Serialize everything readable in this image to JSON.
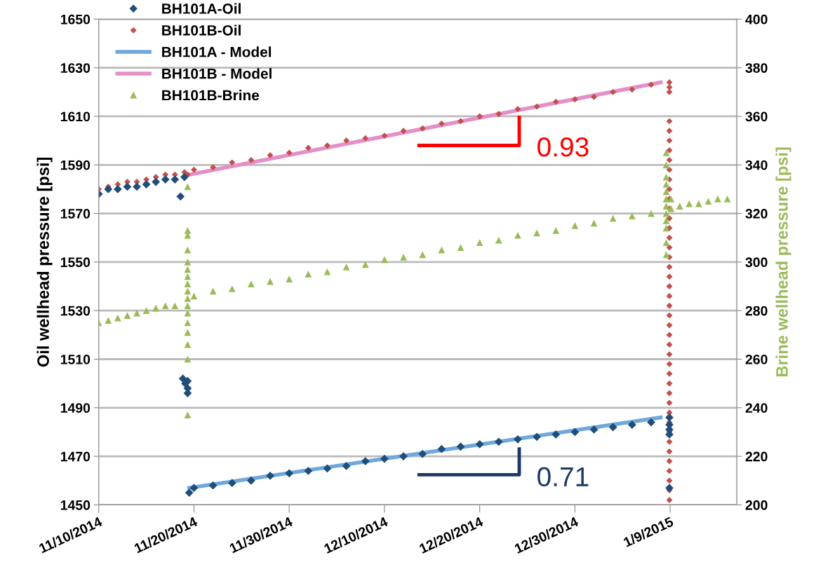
{
  "chart_data": {
    "type": "scatter",
    "ylabel": "Oil wellhead pressure [psi]",
    "y2label": "Brine wellhead pressure [psi]",
    "xlim": [
      "2014-11-10",
      "2015-01-16"
    ],
    "xticks": [
      {
        "value": "2014-11-10",
        "label": "11/10/2014"
      },
      {
        "value": "2014-11-20",
        "label": "11/20/2014"
      },
      {
        "value": "2014-11-30",
        "label": "11/30/2014"
      },
      {
        "value": "2014-12-10",
        "label": "12/10/2014"
      },
      {
        "value": "2014-12-20",
        "label": "12/20/2014"
      },
      {
        "value": "2014-12-30",
        "label": "12/30/2014"
      },
      {
        "value": "2015-01-09",
        "label": "1/9/2015"
      }
    ],
    "ylim": [
      1450,
      1650
    ],
    "yticks": [
      1450,
      1470,
      1490,
      1510,
      1530,
      1550,
      1570,
      1590,
      1610,
      1630,
      1650
    ],
    "y2lim": [
      200,
      400
    ],
    "y2ticks": [
      200,
      220,
      240,
      260,
      280,
      300,
      320,
      340,
      360,
      380,
      400
    ],
    "grid": "y",
    "legend": "top left",
    "series": [
      {
        "name": "BH101A-Oil",
        "marker": "diamond",
        "color": "#1f4e79",
        "x": [
          "2014-11-10",
          "2014-11-11",
          "2014-11-12",
          "2014-11-13",
          "2014-11-14",
          "2014-11-15",
          "2014-11-16",
          "2014-11-17",
          "2014-11-18",
          "2014-11-18T14:00",
          "2014-11-19",
          "2014-11-18T20:00",
          "2014-11-19T02:00",
          "2014-11-19T08:00",
          "2014-11-19T08:00",
          "2014-11-19T08:00",
          "2014-11-19T12:00",
          "2014-11-20",
          "2014-11-22",
          "2014-11-24",
          "2014-11-26",
          "2014-11-28",
          "2014-11-30",
          "2014-12-02",
          "2014-12-04",
          "2014-12-06",
          "2014-12-08",
          "2014-12-10",
          "2014-12-12",
          "2014-12-14",
          "2014-12-16",
          "2014-12-18",
          "2014-12-20",
          "2014-12-22",
          "2014-12-24",
          "2014-12-26",
          "2014-12-28",
          "2014-12-30",
          "2015-01-01",
          "2015-01-03",
          "2015-01-05",
          "2015-01-07",
          "2015-01-08T22:00",
          "2015-01-08T22:00",
          "2015-01-08T22:00",
          "2015-01-08T22:00",
          "2015-01-08T22:00"
        ],
        "values": [
          1578,
          1580,
          1580,
          1581,
          1581,
          1582,
          1583,
          1584,
          1584,
          1577,
          1585,
          1502,
          1500,
          1501,
          1498,
          1496,
          1455,
          1457,
          1458,
          1459,
          1460,
          1462,
          1463,
          1464,
          1465,
          1466,
          1468,
          1469,
          1470,
          1471,
          1473,
          1474,
          1475,
          1476,
          1477,
          1478,
          1479,
          1480,
          1481,
          1482,
          1483,
          1484,
          1486,
          1483,
          1481,
          1479,
          1457
        ]
      },
      {
        "name": "BH101B-Oil",
        "marker": "diamond",
        "color": "#c0504d",
        "x": [
          "2014-11-10",
          "2014-11-11",
          "2014-11-12",
          "2014-11-13",
          "2014-11-14",
          "2014-11-15",
          "2014-11-16",
          "2014-11-17",
          "2014-11-18",
          "2014-11-19",
          "2014-11-19T08:00",
          "2014-11-20",
          "2014-11-22",
          "2014-11-24",
          "2014-11-26",
          "2014-11-28",
          "2014-11-30",
          "2014-12-02",
          "2014-12-04",
          "2014-12-06",
          "2014-12-08",
          "2014-12-10",
          "2014-12-12",
          "2014-12-14",
          "2014-12-16",
          "2014-12-18",
          "2014-12-20",
          "2014-12-22",
          "2014-12-24",
          "2014-12-26",
          "2014-12-28",
          "2014-12-30",
          "2015-01-01",
          "2015-01-03",
          "2015-01-05",
          "2015-01-07",
          "2015-01-08T22:00",
          "2015-01-08T22:00",
          "2015-01-08T22:00",
          "2015-01-08T22:00",
          "2015-01-08T22:00",
          "2015-01-08T22:00",
          "2015-01-08T22:00",
          "2015-01-08T22:00",
          "2015-01-08T22:00",
          "2015-01-08T22:00",
          "2015-01-08T22:00",
          "2015-01-08T22:00",
          "2015-01-08T22:00",
          "2015-01-08T22:00",
          "2015-01-08T22:00",
          "2015-01-08T22:00",
          "2015-01-08T22:00",
          "2015-01-08T22:00",
          "2015-01-08T22:00",
          "2015-01-08T22:00",
          "2015-01-08T22:00",
          "2015-01-08T22:00",
          "2015-01-08T22:00",
          "2015-01-08T22:00",
          "2015-01-08T22:00",
          "2015-01-08T22:00",
          "2015-01-08T22:00",
          "2015-01-08T22:00",
          "2015-01-08T22:00",
          "2015-01-08T22:00",
          "2015-01-08T22:00",
          "2015-01-08T22:00",
          "2015-01-08T22:00",
          "2015-01-08T22:00",
          "2015-01-08T22:00",
          "2015-01-08T22:00",
          "2015-01-08T22:00",
          "2015-01-08T22:00",
          "2015-01-08T22:00",
          "2015-01-08T22:00",
          "2015-01-08T22:00",
          "2015-01-08T22:00",
          "2015-01-08T22:00"
        ],
        "values": [
          1580,
          1581,
          1582,
          1583,
          1583,
          1584,
          1585,
          1586,
          1586,
          1587,
          1586,
          1588,
          1589,
          1591,
          1592,
          1594,
          1595,
          1597,
          1598,
          1600,
          1601,
          1602,
          1604,
          1605,
          1607,
          1608,
          1610,
          1611,
          1613,
          1614,
          1616,
          1617,
          1618,
          1620,
          1621,
          1623,
          1624,
          1622,
          1620,
          1608,
          1604,
          1600,
          1596,
          1592,
          1588,
          1584,
          1580,
          1576,
          1572,
          1568,
          1564,
          1560,
          1556,
          1552,
          1548,
          1544,
          1540,
          1536,
          1532,
          1528,
          1524,
          1520,
          1516,
          1512,
          1508,
          1504,
          1500,
          1496,
          1492,
          1488,
          1484,
          1480,
          1476,
          1472,
          1468,
          1464,
          1460,
          1456,
          1452
        ]
      },
      {
        "name": "BH101A - Model",
        "type": "line",
        "marker": "none",
        "line_style": "solid",
        "color": "#6fa8dc",
        "x": [
          "2014-11-19T12:00",
          "2015-01-08"
        ],
        "values": [
          1457,
          1486
        ]
      },
      {
        "name": "BH101B - Model",
        "type": "line",
        "marker": "none",
        "line_style": "solid",
        "color": "#e58fc8",
        "x": [
          "2014-11-19T12:00",
          "2015-01-08"
        ],
        "values": [
          1586,
          1624
        ]
      },
      {
        "name": "BH101B-Brine",
        "marker": "triangle",
        "axis": "y2",
        "color": "#9bbb59",
        "x": [
          "2014-11-10",
          "2014-11-11",
          "2014-11-12",
          "2014-11-13",
          "2014-11-14",
          "2014-11-15",
          "2014-11-16",
          "2014-11-17",
          "2014-11-18",
          "2014-11-19T08:00",
          "2014-11-19T08:00",
          "2014-11-19T08:00",
          "2014-11-19T08:00",
          "2014-11-19T08:00",
          "2014-11-19T08:00",
          "2014-11-19T08:00",
          "2014-11-19T08:00",
          "2014-11-19T08:00",
          "2014-11-19T08:00",
          "2014-11-19T08:00",
          "2014-11-19T08:00",
          "2014-11-19T08:00",
          "2014-11-19T08:00",
          "2014-11-19T08:00",
          "2014-11-19T08:00",
          "2014-11-19T08:00",
          "2014-11-20",
          "2014-11-22",
          "2014-11-24",
          "2014-11-26",
          "2014-11-28",
          "2014-11-30",
          "2014-12-02",
          "2014-12-04",
          "2014-12-06",
          "2014-12-08",
          "2014-12-10",
          "2014-12-12",
          "2014-12-14",
          "2014-12-16",
          "2014-12-18",
          "2014-12-20",
          "2014-12-22",
          "2014-12-24",
          "2014-12-26",
          "2014-12-28",
          "2014-12-30",
          "2015-01-01",
          "2015-01-03",
          "2015-01-05",
          "2015-01-07",
          "2015-01-08T14:00",
          "2015-01-08T14:00",
          "2015-01-08T14:00",
          "2015-01-08T14:00",
          "2015-01-08T14:00",
          "2015-01-08T14:00",
          "2015-01-08T14:00",
          "2015-01-08T14:00",
          "2015-01-08T14:00",
          "2015-01-08T14:00",
          "2015-01-08T14:00",
          "2015-01-08T14:00",
          "2015-01-09T02:00",
          "2015-01-09T02:00",
          "2015-01-10",
          "2015-01-11",
          "2015-01-12",
          "2015-01-13",
          "2015-01-14",
          "2015-01-15"
        ],
        "values": [
          275,
          276,
          277,
          278,
          279,
          280,
          281,
          282,
          282,
          331,
          313,
          311,
          305,
          300,
          297,
          294,
          291,
          288,
          285,
          282,
          279,
          275,
          271,
          266,
          260,
          237,
          286,
          288,
          289,
          291,
          292,
          293,
          295,
          296,
          298,
          299,
          301,
          302,
          303,
          305,
          306,
          308,
          309,
          311,
          312,
          313,
          315,
          316,
          318,
          319,
          320,
          345,
          340,
          335,
          332,
          329,
          326,
          323,
          320,
          317,
          314,
          308,
          303,
          326,
          322,
          323,
          324,
          324,
          325,
          326,
          326
        ]
      }
    ],
    "annotations": [
      "0.93",
      "0.71"
    ]
  }
}
